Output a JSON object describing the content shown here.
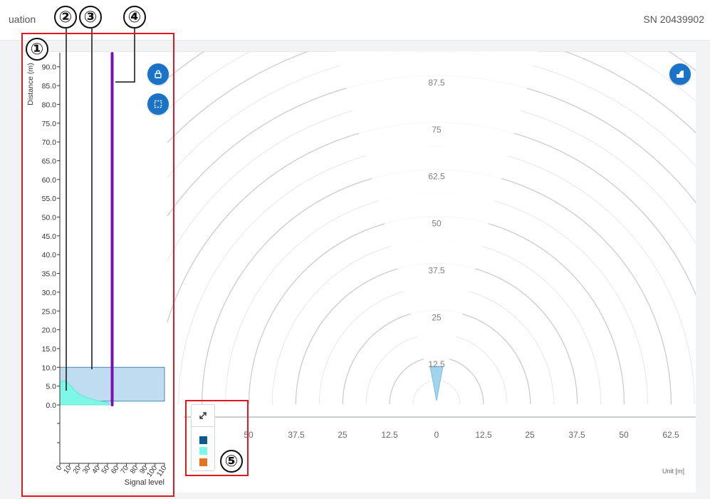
{
  "header": {
    "title": "uation",
    "serial": "SN 20439902"
  },
  "signal_chart": {
    "ylabel": "Distance (m)",
    "xlabel": "Signal level",
    "y_ticks": [
      "90.0",
      "85.0",
      "80.0",
      "75.0",
      "70.0",
      "65.0",
      "60.0",
      "55.0",
      "50.0",
      "45.0",
      "40.0",
      "35.0",
      "30.0",
      "25.0",
      "20.0",
      "15.0",
      "10.0",
      "5.0",
      "0.0"
    ],
    "x_ticks": [
      "0",
      "10",
      "20",
      "30",
      "40",
      "50",
      "60",
      "70",
      "80",
      "90",
      "100",
      "110"
    ],
    "window_range_m": [
      1.0,
      10.0
    ],
    "threshold_signal": 55
  },
  "radar": {
    "ring_labels": [
      "87.5",
      "75",
      "62.5",
      "50",
      "37.5",
      "25",
      "12.5"
    ],
    "axis_ticks": [
      "50",
      "37.5",
      "25",
      "12.5",
      "0",
      "12.5",
      "25",
      "37.5",
      "50",
      "62.5"
    ],
    "unit": "Unit [m]"
  },
  "legend": {
    "colors": [
      "#0b5a8c",
      "#7ff7e6",
      "#e8731c"
    ]
  },
  "callouts": [
    "①",
    "②",
    "③",
    "④",
    "⑤"
  ],
  "colors": {
    "accent": "#1a73c6",
    "threshold": "#7a10b0",
    "window": "#bfdcf1",
    "signal": "#7ff7e6",
    "highlight": "#e0191f"
  },
  "icons": {
    "lock": "lock-icon",
    "select": "select-region-icon",
    "view": "view-mode-icon",
    "expand": "expand-icon"
  }
}
